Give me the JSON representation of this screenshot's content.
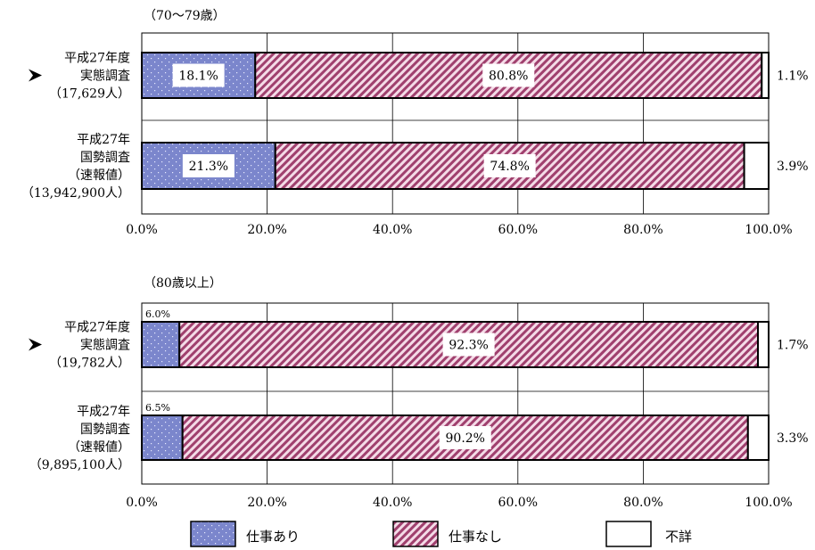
{
  "colors": {
    "work": "#7b86cc",
    "nowork": "#a0406e",
    "unknown": "#ffffff"
  },
  "legend": [
    {
      "label": "仕事あり",
      "key": "work"
    },
    {
      "label": "仕事なし",
      "key": "nowork"
    },
    {
      "label": "不詳",
      "key": "unknown"
    }
  ],
  "chart_data": [
    {
      "type": "bar",
      "orientation": "horizontal",
      "stacked": true,
      "title": "（70～79歳）",
      "xlim": [
        0,
        100
      ],
      "x_ticks": [
        "0.0%",
        "20.0%",
        "40.0%",
        "60.0%",
        "80.0%",
        "100.0%"
      ],
      "grid": true,
      "categories": [
        {
          "lines": [
            "平成27年度",
            "実態調査",
            "（17,629人）"
          ],
          "arrow": true
        },
        {
          "lines": [
            "平成27年",
            "国勢調査",
            "（速報値）",
            "（13,942,900人）"
          ],
          "arrow": false
        }
      ],
      "series": [
        {
          "name": "仕事あり",
          "values": [
            18.1,
            21.3
          ],
          "labels": [
            "18.1%",
            "21.3%"
          ]
        },
        {
          "name": "仕事なし",
          "values": [
            80.8,
            74.8
          ],
          "labels": [
            "80.8%",
            "74.8%"
          ]
        },
        {
          "name": "不詳",
          "values": [
            1.1,
            3.9
          ],
          "labels": [
            "1.1%",
            "3.9%"
          ]
        }
      ]
    },
    {
      "type": "bar",
      "orientation": "horizontal",
      "stacked": true,
      "title": "（80歳以上）",
      "xlim": [
        0,
        100
      ],
      "x_ticks": [
        "0.0%",
        "20.0%",
        "40.0%",
        "60.0%",
        "80.0%",
        "100.0%"
      ],
      "grid": true,
      "categories": [
        {
          "lines": [
            "平成27年度",
            "実態調査",
            "（19,782人）"
          ],
          "arrow": true
        },
        {
          "lines": [
            "平成27年",
            "国勢調査",
            "（速報値）",
            "（9,895,100人）"
          ],
          "arrow": false
        }
      ],
      "series": [
        {
          "name": "仕事あり",
          "values": [
            6.0,
            6.5
          ],
          "labels": [
            "6.0%",
            "6.5%"
          ]
        },
        {
          "name": "仕事なし",
          "values": [
            92.3,
            90.2
          ],
          "labels": [
            "92.3%",
            "90.2%"
          ]
        },
        {
          "name": "不詳",
          "values": [
            1.7,
            3.3
          ],
          "labels": [
            "1.7%",
            "3.3%"
          ]
        }
      ]
    }
  ]
}
